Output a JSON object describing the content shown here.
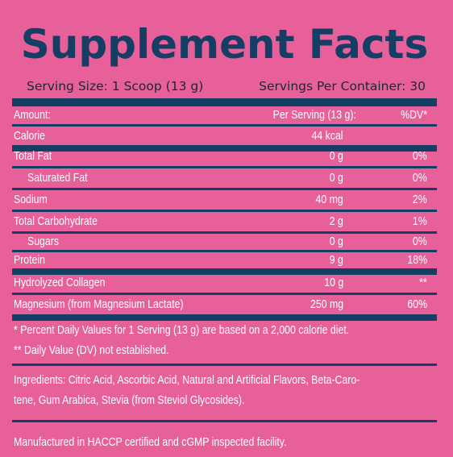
{
  "title": "Supplement Facts",
  "serving": {
    "size": "Serving Size: 1 Scoop (13 g)",
    "per_container": "Servings Per Container: 30"
  },
  "header": {
    "amount": "Amount:",
    "per_serving": "Per Serving (13 g):",
    "dv": "%DV*"
  },
  "nutrients": [
    {
      "name": "Calorie",
      "amount": "44 kcal",
      "dv": ""
    },
    {
      "name": "Total Fat",
      "amount": "0 g",
      "dv": "0%"
    },
    {
      "name": "Saturated Fat",
      "amount": "0 g",
      "dv": "0%"
    },
    {
      "name": "Sodium",
      "amount": "40 mg",
      "dv": "2%"
    },
    {
      "name": "Total Carbohydrate",
      "amount": "2 g",
      "dv": "1%"
    },
    {
      "name": "Sugars",
      "amount": "0 g",
      "dv": "0%"
    },
    {
      "name": "Protein",
      "amount": "9 g",
      "dv": "18%"
    },
    {
      "name": "Hydrolyzed Collagen",
      "amount": "10 g",
      "dv": "**"
    },
    {
      "name": "Magnesium (from Magnesium Lactate)",
      "amount": "250 mg",
      "dv": "60%"
    }
  ],
  "footnotes": {
    "dv_note": "* Percent Daily Values for 1 Serving (13 g) are based on a 2,000 calorie diet.",
    "dv_not_established": "** Daily Value (DV) not established."
  },
  "ingredients": {
    "line1": "Ingredients: Citric Acid, Ascorbic Acid, Natural and Artificial Flavors, Beta-Caro-",
    "line2": "tene, Gum Arabica, Stevia (from Steviol Glycosides)."
  },
  "manufactured": "Manufactured in HACCP certified and cGMP inspected facility.",
  "colors": {
    "background": "#e8609a",
    "navy": "#143e63",
    "text_white": "#ffffff"
  }
}
